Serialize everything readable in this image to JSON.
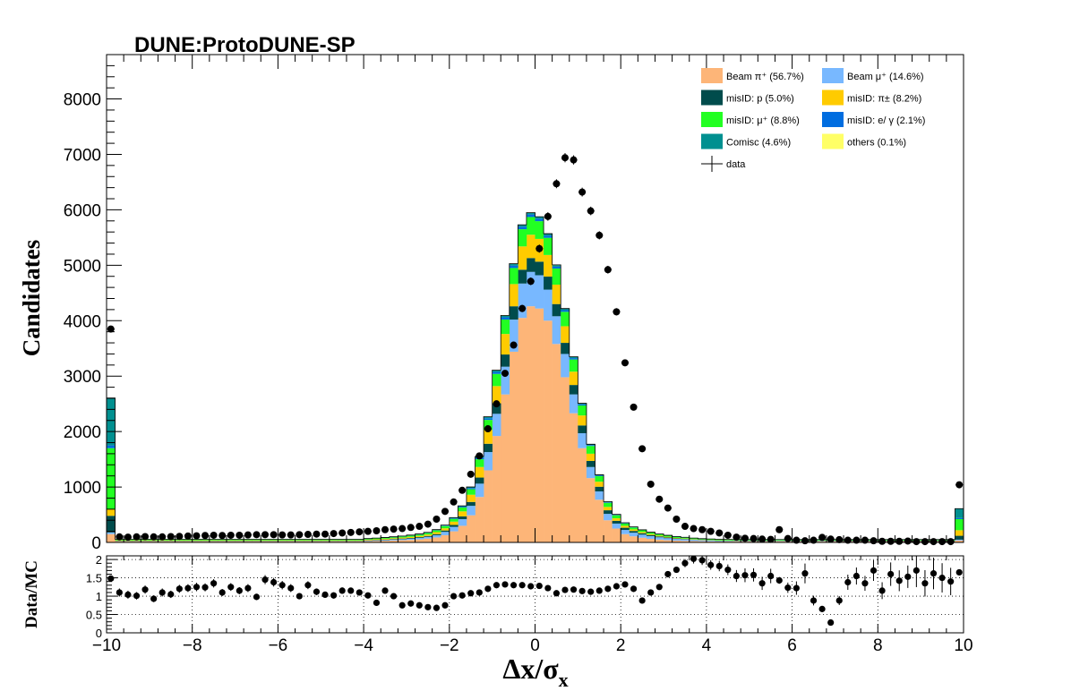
{
  "chart_data": {
    "type": "bar",
    "stacked": true,
    "title": "DUNE:ProtoDUNE-SP",
    "ylabel": "Candidates",
    "ratio_ylabel": "Data/MC",
    "xlabel": "Δx/σ",
    "xlabel_subscript": "x",
    "xlim": [
      -10,
      10
    ],
    "ylim": [
      0,
      8800
    ],
    "ratio_ylim": [
      0,
      2.1
    ],
    "x_ticks": [
      "−10",
      "−8",
      "−6",
      "−4",
      "−2",
      "0",
      "2",
      "4",
      "6",
      "8",
      "10"
    ],
    "y_ticks": [
      "0",
      "1000",
      "2000",
      "3000",
      "4000",
      "5000",
      "6000",
      "7000",
      "8000"
    ],
    "ratio_y_ticks": [
      "0",
      "0.5",
      "1",
      "1.5",
      "2"
    ],
    "ratio_grid": true,
    "legend_position": "top-right",
    "bin_width": 0.2,
    "x": [
      -9.9,
      -9.7,
      -9.5,
      -9.3,
      -9.1,
      -8.9,
      -8.7,
      -8.5,
      -8.3,
      -8.1,
      -7.9,
      -7.7,
      -7.5,
      -7.3,
      -7.1,
      -6.9,
      -6.7,
      -6.5,
      -6.3,
      -6.1,
      -5.9,
      -5.7,
      -5.5,
      -5.3,
      -5.1,
      -4.9,
      -4.7,
      -4.5,
      -4.3,
      -4.1,
      -3.9,
      -3.7,
      -3.5,
      -3.3,
      -3.1,
      -2.9,
      -2.7,
      -2.5,
      -2.3,
      -2.1,
      -1.9,
      -1.7,
      -1.5,
      -1.3,
      -1.1,
      -0.9,
      -0.7,
      -0.5,
      -0.3,
      -0.1,
      0.1,
      0.3,
      0.5,
      0.7,
      0.9,
      1.1,
      1.3,
      1.5,
      1.7,
      1.9,
      2.1,
      2.3,
      2.5,
      2.7,
      2.9,
      3.1,
      3.3,
      3.5,
      3.7,
      3.9,
      4.1,
      4.3,
      4.5,
      4.7,
      4.9,
      5.1,
      5.3,
      5.5,
      5.7,
      5.9,
      6.1,
      6.3,
      6.5,
      6.7,
      6.9,
      7.1,
      7.3,
      7.5,
      7.7,
      7.9,
      8.1,
      8.3,
      8.5,
      8.7,
      8.9,
      9.1,
      9.3,
      9.5,
      9.7,
      9.9
    ],
    "series": [
      {
        "name": "Beam  π⁺ (56.7%)",
        "color": "#fdb578",
        "values": [
          150,
          15,
          15,
          15,
          15,
          15,
          15,
          15,
          15,
          15,
          15,
          15,
          15,
          15,
          15,
          15,
          15,
          15,
          15,
          15,
          15,
          15,
          15,
          15,
          15,
          15,
          15,
          15,
          15,
          15,
          20,
          25,
          30,
          35,
          40,
          45,
          55,
          70,
          90,
          130,
          200,
          300,
          490,
          820,
          1300,
          1920,
          2670,
          3440,
          4050,
          4260,
          4220,
          4000,
          3580,
          2980,
          2330,
          1700,
          1160,
          770,
          400,
          250,
          150,
          110,
          85,
          65,
          50,
          40,
          32,
          28,
          24,
          20,
          18,
          15,
          15,
          15,
          15,
          15,
          15,
          15,
          15,
          15,
          15,
          15,
          15,
          15,
          15,
          15,
          15,
          15,
          15,
          15,
          15,
          15,
          15,
          15,
          15,
          15,
          15,
          15,
          15,
          35
        ]
      },
      {
        "name": "Beam  μ⁺ (14.6%)",
        "color": "#78b8ff",
        "values": [
          30,
          5,
          5,
          5,
          5,
          5,
          5,
          5,
          5,
          5,
          5,
          5,
          5,
          5,
          5,
          5,
          5,
          5,
          5,
          5,
          5,
          5,
          5,
          5,
          5,
          5,
          5,
          5,
          5,
          5,
          8,
          10,
          12,
          15,
          18,
          22,
          25,
          30,
          40,
          60,
          80,
          120,
          170,
          240,
          330,
          400,
          500,
          580,
          620,
          620,
          600,
          560,
          500,
          420,
          340,
          270,
          200,
          150,
          115,
          90,
          75,
          65,
          55,
          48,
          42,
          36,
          30,
          26,
          22,
          18,
          15,
          12,
          10,
          8,
          8,
          8,
          8,
          8,
          8,
          8,
          8,
          8,
          8,
          8,
          8,
          8,
          8,
          8,
          8,
          8,
          8,
          8,
          8,
          8,
          8,
          8,
          8,
          8,
          8,
          15
        ]
      },
      {
        "name": "misID: p (5.0%)",
        "color": "#004c4c",
        "values": [
          300,
          8,
          8,
          8,
          8,
          8,
          8,
          8,
          8,
          8,
          8,
          8,
          8,
          8,
          8,
          8,
          8,
          8,
          8,
          8,
          8,
          8,
          8,
          8,
          8,
          8,
          8,
          8,
          8,
          8,
          9,
          10,
          10,
          11,
          12,
          13,
          15,
          17,
          20,
          25,
          35,
          50,
          70,
          110,
          150,
          190,
          220,
          240,
          250,
          250,
          245,
          235,
          220,
          200,
          170,
          140,
          110,
          85,
          65,
          50,
          40,
          32,
          26,
          20,
          16,
          13,
          10,
          8,
          6,
          5,
          5,
          5,
          5,
          5,
          5,
          5,
          5,
          5,
          5,
          5,
          5,
          5,
          5,
          5,
          5,
          5,
          5,
          5,
          5,
          5,
          5,
          5,
          5,
          5,
          5,
          5,
          5,
          5,
          5,
          70
        ]
      },
      {
        "name": "misID:  π± (8.2%)",
        "color": "#ffcb00",
        "values": [
          120,
          10,
          10,
          10,
          10,
          10,
          10,
          10,
          10,
          10,
          10,
          10,
          10,
          10,
          10,
          10,
          10,
          10,
          10,
          10,
          10,
          10,
          10,
          10,
          10,
          10,
          10,
          10,
          10,
          10,
          12,
          12,
          14,
          15,
          17,
          20,
          22,
          25,
          35,
          40,
          60,
          90,
          130,
          190,
          250,
          310,
          370,
          400,
          420,
          420,
          410,
          390,
          350,
          300,
          240,
          180,
          130,
          90,
          60,
          45,
          35,
          28,
          22,
          18,
          15,
          12,
          10,
          8,
          6,
          6,
          6,
          6,
          6,
          6,
          6,
          6,
          6,
          6,
          6,
          6,
          6,
          6,
          6,
          6,
          6,
          6,
          6,
          6,
          6,
          6,
          6,
          6,
          6,
          6,
          6,
          6,
          6,
          6,
          6,
          100
        ]
      },
      {
        "name": "misID:  μ⁺ (8.8%)",
        "color": "#22ff22",
        "values": [
          1100,
          12,
          12,
          12,
          12,
          12,
          12,
          12,
          12,
          12,
          12,
          12,
          12,
          12,
          12,
          12,
          12,
          12,
          12,
          12,
          12,
          12,
          12,
          12,
          12,
          12,
          12,
          12,
          12,
          12,
          14,
          15,
          16,
          18,
          20,
          22,
          25,
          28,
          32,
          40,
          50,
          70,
          100,
          140,
          180,
          220,
          260,
          290,
          310,
          320,
          320,
          310,
          290,
          260,
          220,
          180,
          140,
          100,
          75,
          55,
          42,
          35,
          30,
          26,
          22,
          20,
          18,
          16,
          14,
          12,
          12,
          12,
          12,
          12,
          12,
          12,
          12,
          12,
          12,
          12,
          12,
          12,
          12,
          12,
          12,
          12,
          12,
          12,
          12,
          12,
          12,
          12,
          12,
          12,
          12,
          12,
          12,
          12,
          12,
          200
        ]
      },
      {
        "name": "misID:  e/ γ (2.1%)",
        "color": "#006de0",
        "values": [
          50,
          2,
          2,
          2,
          2,
          2,
          2,
          2,
          2,
          2,
          2,
          2,
          2,
          2,
          2,
          2,
          2,
          2,
          2,
          2,
          2,
          2,
          2,
          2,
          2,
          2,
          2,
          2,
          2,
          2,
          2,
          2,
          3,
          3,
          3,
          4,
          4,
          5,
          6,
          8,
          10,
          14,
          20,
          25,
          30,
          35,
          40,
          45,
          45,
          45,
          45,
          40,
          35,
          30,
          25,
          20,
          15,
          12,
          10,
          8,
          6,
          5,
          4,
          3,
          3,
          2,
          2,
          2,
          2,
          2,
          2,
          2,
          2,
          2,
          2,
          2,
          2,
          2,
          2,
          2,
          2,
          2,
          2,
          2,
          2,
          2,
          2,
          2,
          2,
          2,
          2,
          2,
          2,
          2,
          2,
          2,
          2,
          2,
          2,
          20
        ]
      },
      {
        "name": "Comisc (4.6%)",
        "color": "#009090",
        "values": [
          850,
          5,
          5,
          5,
          5,
          5,
          5,
          5,
          5,
          5,
          5,
          5,
          5,
          5,
          5,
          5,
          5,
          5,
          5,
          5,
          5,
          5,
          5,
          5,
          5,
          5,
          5,
          5,
          5,
          5,
          5,
          5,
          5,
          5,
          5,
          6,
          6,
          7,
          8,
          10,
          12,
          15,
          18,
          22,
          25,
          28,
          30,
          30,
          30,
          30,
          30,
          30,
          28,
          25,
          22,
          18,
          15,
          12,
          10,
          8,
          7,
          6,
          5,
          5,
          5,
          5,
          5,
          5,
          5,
          5,
          5,
          5,
          5,
          5,
          5,
          5,
          5,
          5,
          5,
          5,
          5,
          5,
          5,
          5,
          5,
          5,
          5,
          5,
          5,
          5,
          5,
          5,
          5,
          5,
          5,
          5,
          5,
          5,
          5,
          170
        ]
      },
      {
        "name": "others (0.1%)",
        "color": "#ffff66",
        "values": [
          5,
          0,
          0,
          0,
          0,
          0,
          0,
          0,
          0,
          0,
          0,
          0,
          0,
          0,
          0,
          0,
          0,
          0,
          0,
          0,
          0,
          0,
          0,
          0,
          0,
          0,
          0,
          0,
          0,
          0,
          0,
          0,
          0,
          0,
          0,
          0,
          0,
          0,
          0,
          0,
          1,
          1,
          2,
          3,
          4,
          5,
          5,
          5,
          5,
          5,
          5,
          5,
          5,
          4,
          3,
          2,
          1,
          1,
          0,
          0,
          0,
          0,
          0,
          0,
          0,
          0,
          0,
          0,
          0,
          0,
          0,
          0,
          0,
          0,
          0,
          0,
          0,
          0,
          0,
          0,
          0,
          0,
          0,
          0,
          0,
          0,
          0,
          0,
          0,
          0,
          0,
          0,
          0,
          0,
          0,
          0,
          0,
          0,
          0,
          0
        ]
      }
    ],
    "data": {
      "name": "data",
      "values": [
        3850,
        100,
        95,
        100,
        105,
        100,
        100,
        105,
        110,
        115,
        120,
        125,
        130,
        125,
        130,
        130,
        135,
        140,
        140,
        140,
        135,
        135,
        140,
        145,
        150,
        150,
        160,
        170,
        180,
        190,
        200,
        210,
        230,
        240,
        250,
        270,
        290,
        330,
        420,
        560,
        730,
        940,
        1230,
        1560,
        2050,
        2500,
        3050,
        3560,
        4220,
        4710,
        5300,
        5880,
        6470,
        6940,
        6900,
        6320,
        5980,
        5540,
        4920,
        4160,
        3240,
        2440,
        1690,
        1050,
        780,
        620,
        420,
        290,
        250,
        230,
        200,
        170,
        130,
        95,
        75,
        70,
        60,
        55,
        230,
        70,
        40,
        30,
        40,
        90,
        60,
        50,
        40,
        40,
        40,
        30,
        20,
        20,
        20,
        25,
        15,
        15,
        15,
        15,
        15,
        1040
      ],
      "errors": [
        60,
        10,
        10,
        10,
        10,
        10,
        10,
        10,
        10,
        10,
        11,
        11,
        11,
        11,
        11,
        11,
        12,
        12,
        12,
        12,
        12,
        12,
        12,
        12,
        12,
        12,
        13,
        13,
        13,
        14,
        14,
        14,
        15,
        15,
        16,
        16,
        17,
        18,
        20,
        24,
        27,
        31,
        35,
        39,
        45,
        50,
        55,
        60,
        65,
        69,
        73,
        77,
        80,
        83,
        83,
        80,
        77,
        74,
        70,
        65,
        57,
        49,
        41,
        32,
        28,
        25,
        20,
        17,
        16,
        15,
        14,
        13,
        11,
        10,
        9,
        8,
        8,
        7,
        15,
        8,
        6,
        5,
        6,
        9,
        8,
        7,
        6,
        6,
        6,
        5,
        4,
        4,
        4,
        5,
        4,
        4,
        4,
        4,
        4,
        32
      ],
      "ratio": [
        1.48,
        1.1,
        1.04,
        1.01,
        1.18,
        0.93,
        1.1,
        1.05,
        1.2,
        1.22,
        1.25,
        1.24,
        1.35,
        1.1,
        1.25,
        1.15,
        1.22,
        0.98,
        1.45,
        1.38,
        1.3,
        1.22,
        1.0,
        1.3,
        1.12,
        1.04,
        1.02,
        1.15,
        1.15,
        1.1,
        1.02,
        0.82,
        1.15,
        1.0,
        0.75,
        0.8,
        0.75,
        0.7,
        0.68,
        0.75,
        1.0,
        1.02,
        1.08,
        1.1,
        1.2,
        1.3,
        1.32,
        1.3,
        1.3,
        1.27,
        1.28,
        1.22,
        1.08,
        1.17,
        1.18,
        1.14,
        1.12,
        1.15,
        1.2,
        1.27,
        1.32,
        1.2,
        0.88,
        1.1,
        1.25,
        1.6,
        1.72,
        1.9,
        2.02,
        1.98,
        1.85,
        1.82,
        1.72,
        1.55,
        1.57,
        1.58,
        1.35,
        1.55,
        1.43,
        1.23,
        1.22,
        1.62,
        0.88,
        0.65,
        0.28,
        0.88,
        1.38,
        1.55,
        1.35,
        1.7,
        1.15,
        1.6,
        1.42,
        1.53,
        1.7,
        1.35,
        1.62,
        1.5,
        1.4,
        1.65
      ]
    },
    "ratio_errors_scale": 0.08
  }
}
